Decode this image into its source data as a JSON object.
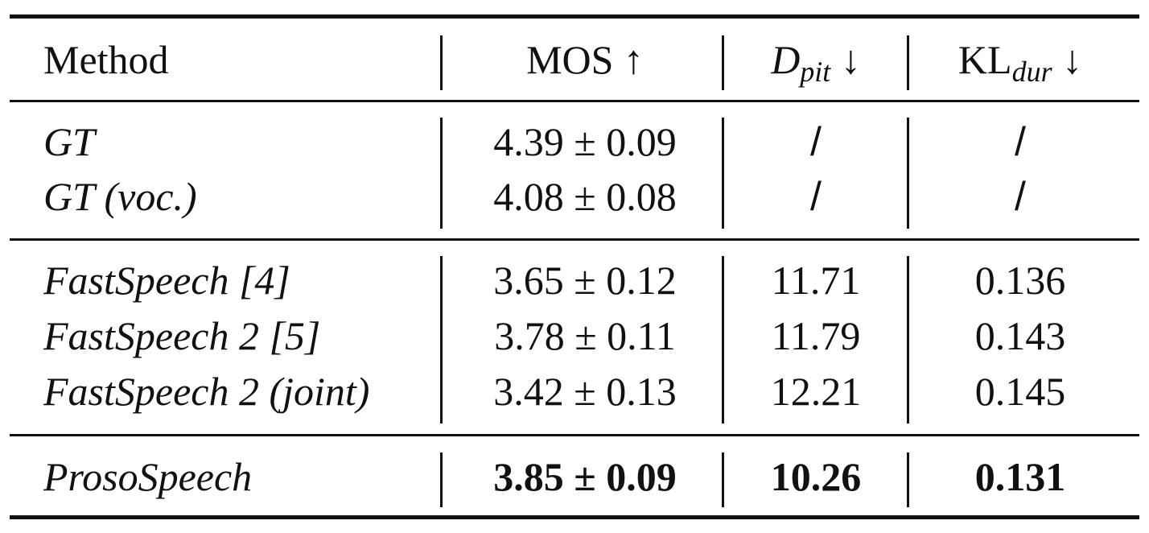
{
  "table": {
    "header": {
      "method": "Method",
      "mos": "MOS ↑",
      "dpit_main": "D",
      "dpit_sub": "pit",
      "dpit_arrow": " ↓",
      "kl_main": "KL",
      "kl_sub": "dur",
      "kl_arrow": " ↓"
    },
    "groups": [
      {
        "rows": [
          {
            "method": "GT",
            "mos": "4.39 ± 0.09",
            "dpit": "/",
            "kl": "/"
          },
          {
            "method": "GT (voc.)",
            "mos": "4.08 ± 0.08",
            "dpit": "/",
            "kl": "/"
          }
        ]
      },
      {
        "rows": [
          {
            "method": "FastSpeech [4]",
            "mos": "3.65 ± 0.12",
            "dpit": "11.71",
            "kl": "0.136"
          },
          {
            "method": "FastSpeech 2 [5]",
            "mos": "3.78 ± 0.11",
            "dpit": "11.79",
            "kl": "0.143"
          },
          {
            "method": "FastSpeech 2 (joint)",
            "mos": "3.42 ± 0.13",
            "dpit": "12.21",
            "kl": "0.145"
          }
        ]
      },
      {
        "rows": [
          {
            "method": "ProsoSpeech",
            "mos": "3.85 ± 0.09",
            "dpit": "10.26",
            "kl": "0.131"
          }
        ]
      }
    ]
  }
}
